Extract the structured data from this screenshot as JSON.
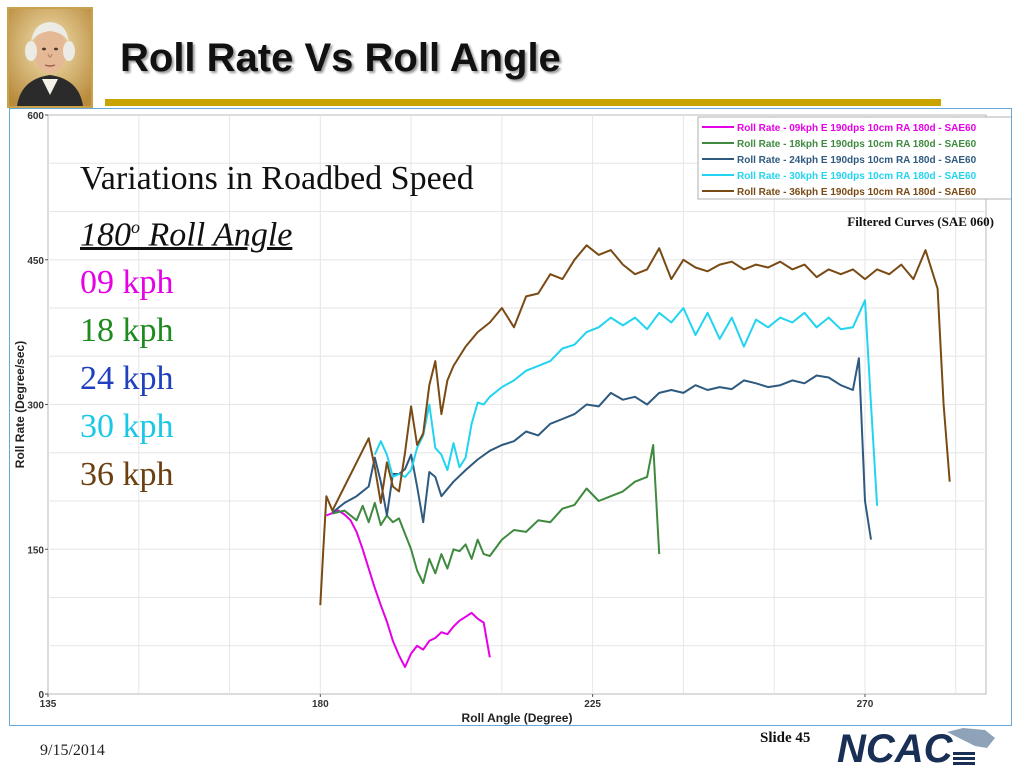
{
  "slide": {
    "title": "Roll Rate Vs Roll Angle",
    "date": "9/15/2014",
    "slide_label": "Slide 45",
    "logo_text": "NCAC"
  },
  "caption": {
    "heading": "Variations in Roadbed Speed",
    "angle_value": "180",
    "angle_sup": "o",
    "angle_rest": " Roll Angle",
    "speeds": [
      {
        "label": "09 kph",
        "color": "#e600e6"
      },
      {
        "label": "18 kph",
        "color": "#1f8b1f"
      },
      {
        "label": "24 kph",
        "color": "#1f3fbf"
      },
      {
        "label": "30 kph",
        "color": "#1ac8e6"
      },
      {
        "label": "36 kph",
        "color": "#6b3f10"
      }
    ]
  },
  "chart_data": {
    "type": "line",
    "xlabel": "Roll Angle (Degree)",
    "ylabel": "Roll Rate (Degree/sec)",
    "xlim": [
      135,
      290
    ],
    "ylim": [
      0,
      600
    ],
    "xticks": [
      135,
      180,
      225,
      270
    ],
    "yticks": [
      0,
      150,
      300,
      450,
      600
    ],
    "grid": true,
    "legend_position": "top-right",
    "annotation": "Filtered Curves (SAE 060)",
    "series": [
      {
        "name": "Roll Rate - 09kph E 190dps 10cm RA 180d - SAE60",
        "color": "#e600e6",
        "x": [
          181,
          183,
          184,
          185,
          186,
          187,
          188,
          189,
          190,
          191,
          192,
          193,
          194,
          195,
          196,
          197,
          198,
          199,
          200,
          201,
          202,
          203,
          204,
          205,
          206,
          207,
          208
        ],
        "y": [
          185,
          190,
          186,
          180,
          168,
          150,
          130,
          110,
          92,
          75,
          55,
          40,
          28,
          42,
          50,
          46,
          55,
          58,
          64,
          62,
          70,
          76,
          80,
          84,
          78,
          74,
          38
        ]
      },
      {
        "name": "Roll Rate - 18kph E 190dps 10cm RA 180d - SAE60",
        "color": "#3f8a3f",
        "x": [
          182,
          184,
          186,
          187,
          188,
          189,
          190,
          191,
          192,
          193,
          194,
          195,
          196,
          197,
          198,
          199,
          200,
          201,
          202,
          203,
          204,
          205,
          206,
          207,
          208,
          210,
          212,
          214,
          216,
          218,
          220,
          222,
          224,
          226,
          228,
          230,
          232,
          234,
          235,
          236
        ],
        "y": [
          187,
          190,
          180,
          195,
          178,
          198,
          175,
          185,
          178,
          182,
          166,
          150,
          128,
          115,
          140,
          125,
          145,
          130,
          150,
          148,
          155,
          140,
          160,
          145,
          143,
          160,
          170,
          168,
          180,
          178,
          192,
          196,
          213,
          200,
          205,
          210,
          220,
          225,
          258,
          145
        ]
      },
      {
        "name": "Roll Rate - 24kph E 190dps 10cm RA 180d - SAE60",
        "color": "#2f5a80",
        "x": [
          182,
          184,
          186,
          188,
          189,
          190,
          191,
          192,
          193,
          194,
          195,
          196,
          197,
          198,
          199,
          200,
          202,
          204,
          206,
          208,
          210,
          212,
          214,
          216,
          218,
          220,
          222,
          224,
          226,
          228,
          230,
          232,
          234,
          236,
          238,
          240,
          242,
          244,
          246,
          248,
          250,
          252,
          254,
          256,
          258,
          260,
          262,
          264,
          266,
          268,
          269,
          270,
          271
        ],
        "y": [
          188,
          198,
          205,
          215,
          245,
          220,
          185,
          228,
          228,
          233,
          248,
          215,
          178,
          230,
          225,
          205,
          220,
          232,
          243,
          252,
          258,
          262,
          272,
          268,
          280,
          285,
          290,
          300,
          298,
          312,
          305,
          308,
          300,
          312,
          315,
          312,
          320,
          315,
          318,
          316,
          325,
          322,
          318,
          320,
          325,
          322,
          330,
          328,
          320,
          315,
          348,
          200,
          160
        ]
      },
      {
        "name": "Roll Rate - 30kph E 190dps 10cm RA 180d - SAE60",
        "color": "#22d4f0",
        "x": [
          189,
          190,
          191,
          192,
          193,
          194,
          195,
          196,
          197,
          198,
          199,
          200,
          201,
          202,
          203,
          204,
          205,
          206,
          207,
          208,
          210,
          212,
          214,
          216,
          218,
          220,
          222,
          224,
          226,
          228,
          230,
          232,
          234,
          236,
          238,
          240,
          242,
          244,
          246,
          248,
          250,
          252,
          254,
          256,
          258,
          260,
          262,
          264,
          266,
          268,
          270,
          271,
          272
        ],
        "y": [
          248,
          262,
          248,
          225,
          228,
          225,
          232,
          255,
          268,
          300,
          255,
          248,
          232,
          260,
          235,
          245,
          280,
          302,
          300,
          308,
          318,
          325,
          335,
          340,
          345,
          358,
          362,
          375,
          380,
          390,
          382,
          390,
          378,
          395,
          385,
          400,
          372,
          395,
          368,
          390,
          360,
          388,
          380,
          390,
          385,
          395,
          380,
          390,
          378,
          380,
          408,
          300,
          195
        ]
      },
      {
        "name": "Roll Rate - 36kph E 190dps 10cm RA 180d - SAE60",
        "color": "#7a4a14",
        "x": [
          180,
          180.5,
          181,
          182,
          184,
          186,
          188,
          189,
          190,
          191,
          192,
          193,
          194,
          195,
          196,
          197,
          198,
          199,
          200,
          201,
          202,
          204,
          206,
          208,
          210,
          212,
          214,
          216,
          218,
          220,
          222,
          224,
          226,
          228,
          230,
          232,
          234,
          236,
          238,
          240,
          242,
          244,
          246,
          248,
          250,
          252,
          254,
          256,
          258,
          260,
          262,
          264,
          266,
          268,
          270,
          272,
          274,
          276,
          278,
          280,
          282,
          283,
          284
        ],
        "y": [
          92,
          150,
          205,
          190,
          215,
          240,
          265,
          235,
          198,
          240,
          215,
          210,
          250,
          298,
          258,
          270,
          320,
          345,
          290,
          325,
          340,
          360,
          375,
          385,
          400,
          380,
          412,
          415,
          435,
          430,
          450,
          465,
          455,
          460,
          445,
          435,
          440,
          462,
          430,
          450,
          442,
          438,
          445,
          448,
          440,
          445,
          442,
          448,
          440,
          445,
          432,
          440,
          435,
          440,
          430,
          440,
          435,
          445,
          430,
          460,
          420,
          300,
          220
        ]
      }
    ]
  }
}
